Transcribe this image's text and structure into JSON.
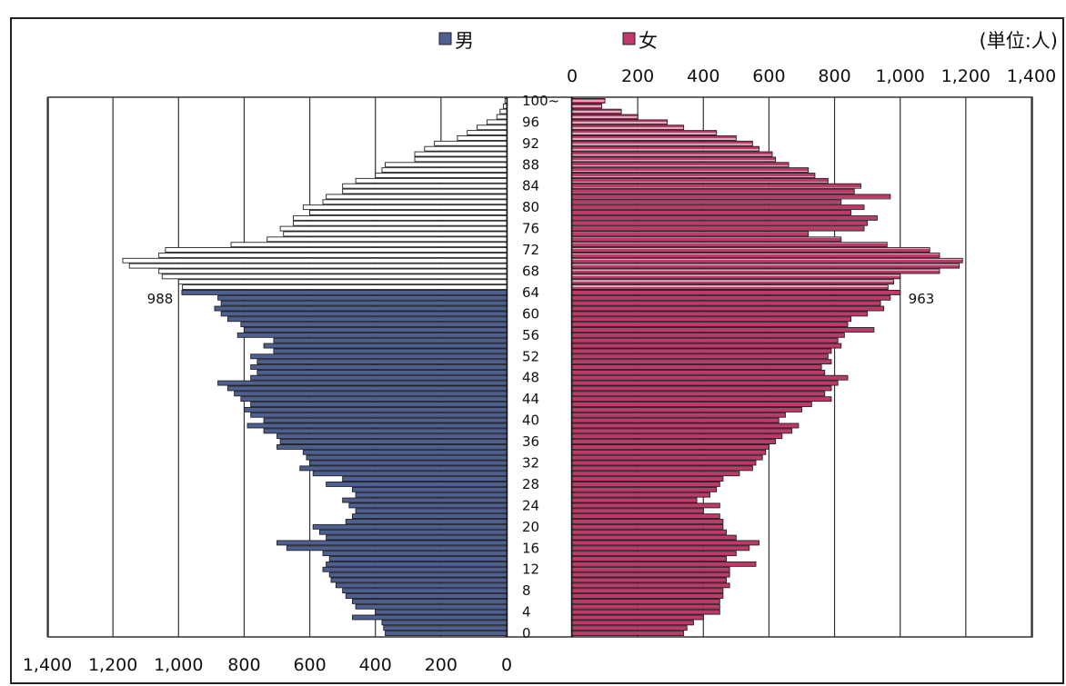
{
  "chart_data": {
    "type": "bar",
    "orientation": "horizontal",
    "unit_label": "(単位:人)",
    "legend": [
      {
        "name": "男",
        "color": "#4e5f92"
      },
      {
        "name": "女",
        "color": "#bf3a6a"
      }
    ],
    "male_axis_ticks": [
      "1,400",
      "1,200",
      "1,000",
      "800",
      "600",
      "400",
      "200",
      "0"
    ],
    "female_axis_ticks": [
      "0",
      "200",
      "400",
      "600",
      "800",
      "1,000",
      "1,200",
      "1,400"
    ],
    "age_tick_labels": [
      "100~",
      "96",
      "92",
      "88",
      "84",
      "80",
      "76",
      "72",
      "68",
      "64",
      "60",
      "56",
      "52",
      "48",
      "44",
      "40",
      "36",
      "32",
      "28",
      "24",
      "20",
      "16",
      "12",
      "8",
      "4",
      "0"
    ],
    "xlim": [
      0,
      1400
    ],
    "grid": true,
    "colors": {
      "male": "#4e5f92",
      "female": "#bf3a6a",
      "male_65plus": "#ffffff",
      "female_65plus_stripe": "#e3a8bd",
      "outline": "#222222",
      "grid": "#333333"
    },
    "annotations": [
      {
        "text": "988",
        "side": "male",
        "age": 64
      },
      {
        "text": "963",
        "side": "female",
        "age": 64
      }
    ],
    "series": [
      {
        "name": "男",
        "ages": [
          0,
          1,
          2,
          3,
          4,
          5,
          6,
          7,
          8,
          9,
          10,
          11,
          12,
          13,
          14,
          15,
          16,
          17,
          18,
          19,
          20,
          21,
          22,
          23,
          24,
          25,
          26,
          27,
          28,
          29,
          30,
          31,
          32,
          33,
          34,
          35,
          36,
          37,
          38,
          39,
          40,
          41,
          42,
          43,
          44,
          45,
          46,
          47,
          48,
          49,
          50,
          51,
          52,
          53,
          54,
          55,
          56,
          57,
          58,
          59,
          60,
          61,
          62,
          63,
          64,
          65,
          66,
          67,
          68,
          69,
          70,
          71,
          72,
          73,
          74,
          75,
          76,
          77,
          78,
          79,
          80,
          81,
          82,
          83,
          84,
          85,
          86,
          87,
          88,
          89,
          90,
          91,
          92,
          93,
          94,
          95,
          96,
          97,
          98,
          99,
          100
        ],
        "values": [
          370,
          375,
          380,
          470,
          400,
          460,
          470,
          490,
          500,
          520,
          535,
          540,
          560,
          550,
          540,
          560,
          670,
          700,
          550,
          570,
          590,
          490,
          470,
          460,
          480,
          500,
          460,
          470,
          550,
          500,
          590,
          630,
          600,
          610,
          620,
          700,
          690,
          700,
          740,
          790,
          740,
          780,
          800,
          780,
          810,
          830,
          850,
          880,
          780,
          760,
          780,
          760,
          780,
          710,
          740,
          710,
          820,
          800,
          810,
          850,
          870,
          890,
          870,
          880,
          990,
          988,
          1000,
          1050,
          1060,
          1150,
          1170,
          1060,
          1040,
          840,
          730,
          680,
          690,
          650,
          650,
          600,
          620,
          560,
          550,
          500,
          500,
          460,
          400,
          380,
          370,
          280,
          280,
          250,
          220,
          150,
          120,
          90,
          60,
          30,
          20,
          10,
          5
        ]
      },
      {
        "name": "女",
        "ages": [
          0,
          1,
          2,
          3,
          4,
          5,
          6,
          7,
          8,
          9,
          10,
          11,
          12,
          13,
          14,
          15,
          16,
          17,
          18,
          19,
          20,
          21,
          22,
          23,
          24,
          25,
          26,
          27,
          28,
          29,
          30,
          31,
          32,
          33,
          34,
          35,
          36,
          37,
          38,
          39,
          40,
          41,
          42,
          43,
          44,
          45,
          46,
          47,
          48,
          49,
          50,
          51,
          52,
          53,
          54,
          55,
          56,
          57,
          58,
          59,
          60,
          61,
          62,
          63,
          64,
          65,
          66,
          67,
          68,
          69,
          70,
          71,
          72,
          73,
          74,
          75,
          76,
          77,
          78,
          79,
          80,
          81,
          82,
          83,
          84,
          85,
          86,
          87,
          88,
          89,
          90,
          91,
          92,
          93,
          94,
          95,
          96,
          97,
          98,
          99,
          100
        ],
        "values": [
          340,
          350,
          370,
          400,
          450,
          450,
          450,
          460,
          460,
          480,
          470,
          480,
          480,
          560,
          470,
          500,
          540,
          570,
          500,
          470,
          460,
          460,
          450,
          400,
          450,
          380,
          420,
          440,
          450,
          460,
          510,
          550,
          560,
          580,
          590,
          600,
          620,
          640,
          670,
          690,
          630,
          650,
          700,
          730,
          790,
          770,
          790,
          810,
          840,
          770,
          760,
          790,
          780,
          790,
          820,
          810,
          830,
          920,
          840,
          850,
          900,
          950,
          940,
          970,
          1000,
          963,
          980,
          1000,
          1120,
          1180,
          1190,
          1120,
          1090,
          960,
          820,
          720,
          890,
          900,
          930,
          850,
          890,
          820,
          970,
          860,
          880,
          780,
          740,
          720,
          660,
          620,
          610,
          570,
          550,
          500,
          440,
          340,
          290,
          200,
          150,
          90,
          100
        ]
      }
    ]
  }
}
